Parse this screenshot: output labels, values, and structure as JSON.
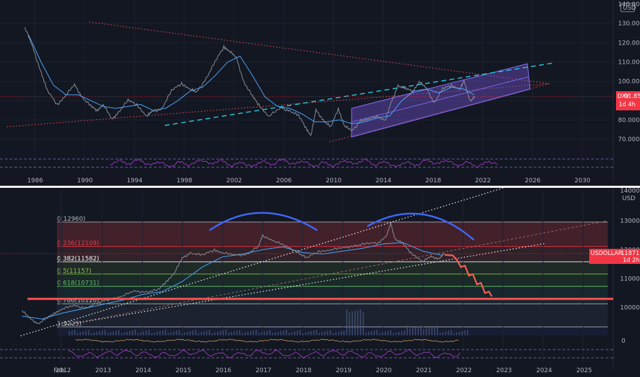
{
  "colors": {
    "background": "#131722",
    "separator": "#ffffff",
    "price": "#8a8f99",
    "ma_fast": "#4aa8ff",
    "ma_slow": "#3f7fd8",
    "channel_fill": "#6d4fc7",
    "triangle": "#ff5252",
    "dashed_trend": "#26c6da",
    "red_tag": "#f23645",
    "rsi": "#b040d8",
    "arc": "#3d68ff",
    "projection": "#ff5f52"
  },
  "chart_data": [
    {
      "type": "line",
      "symbol": "DXY",
      "currency_badge": "USD",
      "last_value_label": "91.859",
      "last_value": 91.859,
      "countdown_label": "1d 4h",
      "y_ticks": [
        "130.000",
        "120.000",
        "110.000",
        "100.000",
        "90.000",
        "80.000",
        "70.000"
      ],
      "y_top_partial_label": "140.000",
      "x_ticks": [
        "1986",
        "1990",
        "1994",
        "1998",
        "2002",
        "2006",
        "2010",
        "2014",
        "2018",
        "2022",
        "2026",
        "2030"
      ],
      "x": [
        1985.2,
        1985.8,
        1986.5,
        1987.0,
        1987.8,
        1988.5,
        1989.2,
        1989.8,
        1990.5,
        1991.0,
        1991.5,
        1992.2,
        1992.7,
        1993.5,
        1994.2,
        1995.0,
        1995.4,
        1996.2,
        1997.0,
        1997.8,
        1998.5,
        1999.0,
        1999.8,
        2000.5,
        2001.2,
        2001.6,
        2002.2,
        2002.8,
        2003.5,
        2004.0,
        2004.8,
        2005.8,
        2006.5,
        2007.2,
        2007.8,
        2008.2,
        2008.6,
        2009.2,
        2009.8,
        2010.4,
        2010.9,
        2011.5,
        2012.2,
        2012.8,
        2013.5,
        2014.2,
        2014.6,
        2015.2,
        2015.8,
        2016.4,
        2016.9,
        2017.5,
        2018.1,
        2018.8,
        2019.5,
        2020.2,
        2020.5,
        2021.0,
        2021.4
      ],
      "y": [
        128,
        118,
        105,
        95,
        88,
        93,
        98,
        92,
        87,
        85,
        88,
        80,
        84,
        90,
        88,
        82,
        84,
        86,
        95,
        99,
        96,
        94,
        102,
        110,
        118,
        116,
        112,
        100,
        92,
        88,
        82,
        86,
        85,
        82,
        76,
        72,
        85,
        80,
        76,
        86,
        77,
        74,
        80,
        80,
        82,
        80,
        88,
        98,
        96,
        95,
        100,
        96,
        89,
        96,
        98,
        96,
        100,
        90,
        91.9
      ],
      "ma_x": [
        1985.5,
        1986.5,
        1987.5,
        1988.5,
        1989.5,
        1990.5,
        1991.5,
        1992.5,
        1993.5,
        1994.5,
        1995.5,
        1996.5,
        1997.5,
        1998.5,
        1999.5,
        2000.5,
        2001.5,
        2002.5,
        2003.5,
        2004.5,
        2005.5,
        2006.5,
        2007.5,
        2008.5,
        2009.5,
        2010.5,
        2011.5,
        2012.5,
        2013.5,
        2014.5,
        2015.5,
        2016.5,
        2017.5,
        2018.5,
        2019.5,
        2020.5,
        2021.3
      ],
      "ma": [
        124,
        110,
        98,
        93,
        93,
        90,
        87,
        86,
        87,
        88,
        85,
        86,
        90,
        95,
        97,
        103,
        110,
        113,
        103,
        92,
        87,
        86,
        83,
        79,
        79,
        80,
        78,
        79,
        81,
        82,
        90,
        95,
        96,
        94,
        97,
        96,
        93
      ],
      "y_range": [
        64,
        140
      ],
      "x_range": [
        1983.2,
        2032.5
      ]
    },
    {
      "type": "line",
      "symbol": "USDOLLAR",
      "currency_badge": "USD",
      "last_value_label": "11871",
      "last_value": 11871,
      "countdown_label": "1d 2h",
      "y_ticks": [
        "13000",
        "12000",
        "11000",
        "10000"
      ],
      "y_top_partial_label": "14000",
      "osc_zero_label": "0",
      "x_ticks": [
        "Feb",
        "2012",
        "2013",
        "2014",
        "2015",
        "2016",
        "2017",
        "2018",
        "2019",
        "2020",
        "2021",
        "2022",
        "2023",
        "2024",
        "2025"
      ],
      "fib_levels": [
        {
          "label": "0(12960)",
          "value": 12960,
          "color": "#b2b5be",
          "fill": "#6b2a33"
        },
        {
          "label": "0.236(12109)",
          "value": 12109,
          "color": "#f23645",
          "fill": "#4a2a30"
        },
        {
          "label": "0.382(11582)",
          "value": 11582,
          "color": "#ffffff",
          "fill": "#2a3b2c"
        },
        {
          "label": "0.5(11157)",
          "value": 11157,
          "color": "#8bc34a",
          "fill": "#1f3a2c"
        },
        {
          "label": "0.618(10731)",
          "value": 10731,
          "color": "#66bb6a",
          "fill": "#1a3536"
        },
        {
          "label": "0.786(10126)",
          "value": 10126,
          "color": "#b2b5be",
          "fill": "#242b3a"
        },
        {
          "label": "1(9325)",
          "value": 9325,
          "color": "#b2b5be",
          "fill": "#1c2340"
        }
      ],
      "x": [
        2011.0,
        2011.2,
        2011.4,
        2011.6,
        2011.8,
        2012.0,
        2012.3,
        2012.6,
        2012.9,
        2013.2,
        2013.5,
        2013.8,
        2014.1,
        2014.4,
        2014.6,
        2014.8,
        2015.0,
        2015.2,
        2015.5,
        2015.8,
        2016.0,
        2016.3,
        2016.6,
        2016.9,
        2017.0,
        2017.3,
        2017.6,
        2017.9,
        2018.1,
        2018.4,
        2018.7,
        2019.0,
        2019.3,
        2019.6,
        2019.9,
        2020.1,
        2020.2,
        2020.3,
        2020.5,
        2020.7,
        2021.0,
        2021.2,
        2021.4,
        2021.55
      ],
      "y": [
        9900,
        9600,
        9450,
        9600,
        9800,
        9950,
        10050,
        10000,
        10150,
        10300,
        10400,
        10550,
        10550,
        10600,
        10900,
        11200,
        11700,
        11900,
        11800,
        12000,
        11900,
        11800,
        11850,
        12100,
        12500,
        12300,
        12100,
        11900,
        11700,
        11950,
        12000,
        12050,
        12150,
        12200,
        12250,
        12500,
        12900,
        12400,
        12200,
        11900,
        11600,
        11750,
        11700,
        11871
      ],
      "ma_x": [
        2011.0,
        2011.5,
        2012.0,
        2012.5,
        2013.0,
        2013.5,
        2014.0,
        2014.5,
        2015.0,
        2015.5,
        2016.0,
        2016.5,
        2017.0,
        2017.5,
        2018.0,
        2018.5,
        2019.0,
        2019.5,
        2020.0,
        2020.5,
        2021.0,
        2021.5
      ],
      "ma": [
        9700,
        9600,
        9800,
        9950,
        10100,
        10250,
        10450,
        10550,
        10900,
        11400,
        11750,
        11850,
        12000,
        12100,
        11900,
        11850,
        11950,
        12050,
        12200,
        12250,
        11950,
        11800
      ],
      "projection_x": [
        2021.55,
        2021.75,
        2021.85,
        2021.95,
        2022.05,
        2022.15,
        2022.25,
        2022.35,
        2022.45,
        2022.55,
        2022.65,
        2022.72
      ],
      "projection_y": [
        11820,
        11800,
        11650,
        11400,
        11450,
        11100,
        11150,
        10800,
        10850,
        10500,
        10550,
        10380
      ],
      "y_range": [
        9300,
        14050
      ],
      "x_range": [
        2010.45,
        2025.75
      ]
    }
  ]
}
